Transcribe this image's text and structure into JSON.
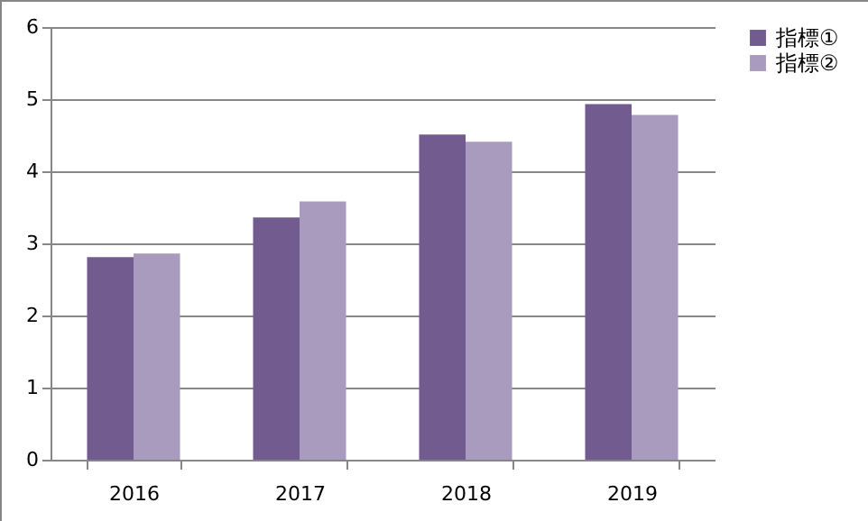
{
  "chart_data": {
    "type": "bar",
    "categories": [
      "2016",
      "2017",
      "2018",
      "2019"
    ],
    "series": [
      {
        "name": "指標①",
        "color": "#725b8f",
        "values": [
          2.81,
          3.36,
          4.51,
          4.93
        ]
      },
      {
        "name": "指標②",
        "color": "#a99bbd",
        "values": [
          2.86,
          3.58,
          4.41,
          4.78
        ]
      }
    ],
    "ylim": [
      0,
      6
    ],
    "yticks": [
      0,
      1,
      2,
      3,
      4,
      5,
      6
    ],
    "grid": "y",
    "legend": "right"
  }
}
